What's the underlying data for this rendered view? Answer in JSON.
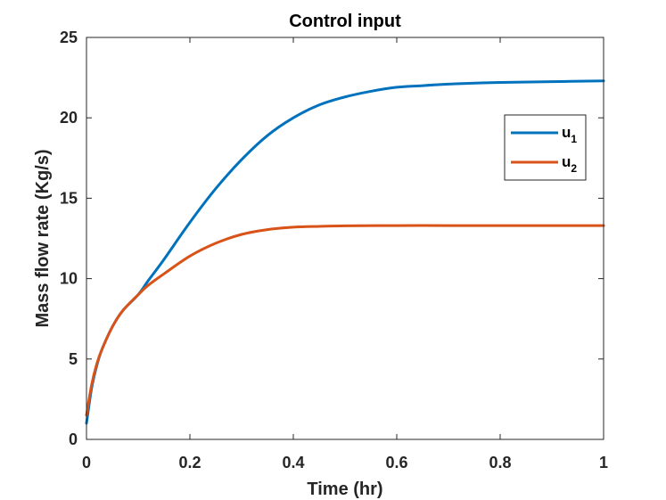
{
  "chart_data": {
    "type": "line",
    "title": "Control input",
    "xlabel": "Time (hr)",
    "ylabel": "Mass flow rate (Kg/s)",
    "xlim": [
      0,
      1
    ],
    "ylim": [
      0,
      25
    ],
    "xticks": [
      0,
      0.2,
      0.4,
      0.6,
      0.8,
      1
    ],
    "xtick_labels": [
      "0",
      "0.2",
      "0.4",
      "0.6",
      "0.8",
      "1"
    ],
    "yticks": [
      0,
      5,
      10,
      15,
      20,
      25
    ],
    "ytick_labels": [
      "0",
      "5",
      "10",
      "15",
      "20",
      "25"
    ],
    "grid": false,
    "legend_position": "upper-right",
    "series": [
      {
        "name": "u",
        "subscript": "1",
        "color": "#0072BD",
        "x": [
          0,
          0.01,
          0.02,
          0.03,
          0.05,
          0.07,
          0.1,
          0.12,
          0.15,
          0.2,
          0.25,
          0.3,
          0.35,
          0.4,
          0.45,
          0.5,
          0.55,
          0.6,
          0.65,
          0.7,
          0.8,
          0.9,
          1.0
        ],
        "y": [
          1.0,
          3.2,
          4.6,
          5.6,
          7.0,
          8.0,
          9.0,
          9.9,
          11.2,
          13.5,
          15.6,
          17.4,
          18.9,
          20.0,
          20.8,
          21.3,
          21.65,
          21.9,
          22.0,
          22.1,
          22.2,
          22.25,
          22.3
        ]
      },
      {
        "name": "u",
        "subscript": "2",
        "color": "#D95319",
        "x": [
          0,
          0.01,
          0.02,
          0.03,
          0.05,
          0.07,
          0.1,
          0.12,
          0.15,
          0.2,
          0.25,
          0.3,
          0.35,
          0.4,
          0.45,
          0.5,
          0.6,
          0.7,
          0.8,
          1.0
        ],
        "y": [
          1.5,
          3.4,
          4.7,
          5.6,
          7.0,
          8.0,
          9.0,
          9.6,
          10.3,
          11.4,
          12.2,
          12.75,
          13.05,
          13.2,
          13.25,
          13.28,
          13.3,
          13.3,
          13.3,
          13.3
        ]
      }
    ]
  }
}
